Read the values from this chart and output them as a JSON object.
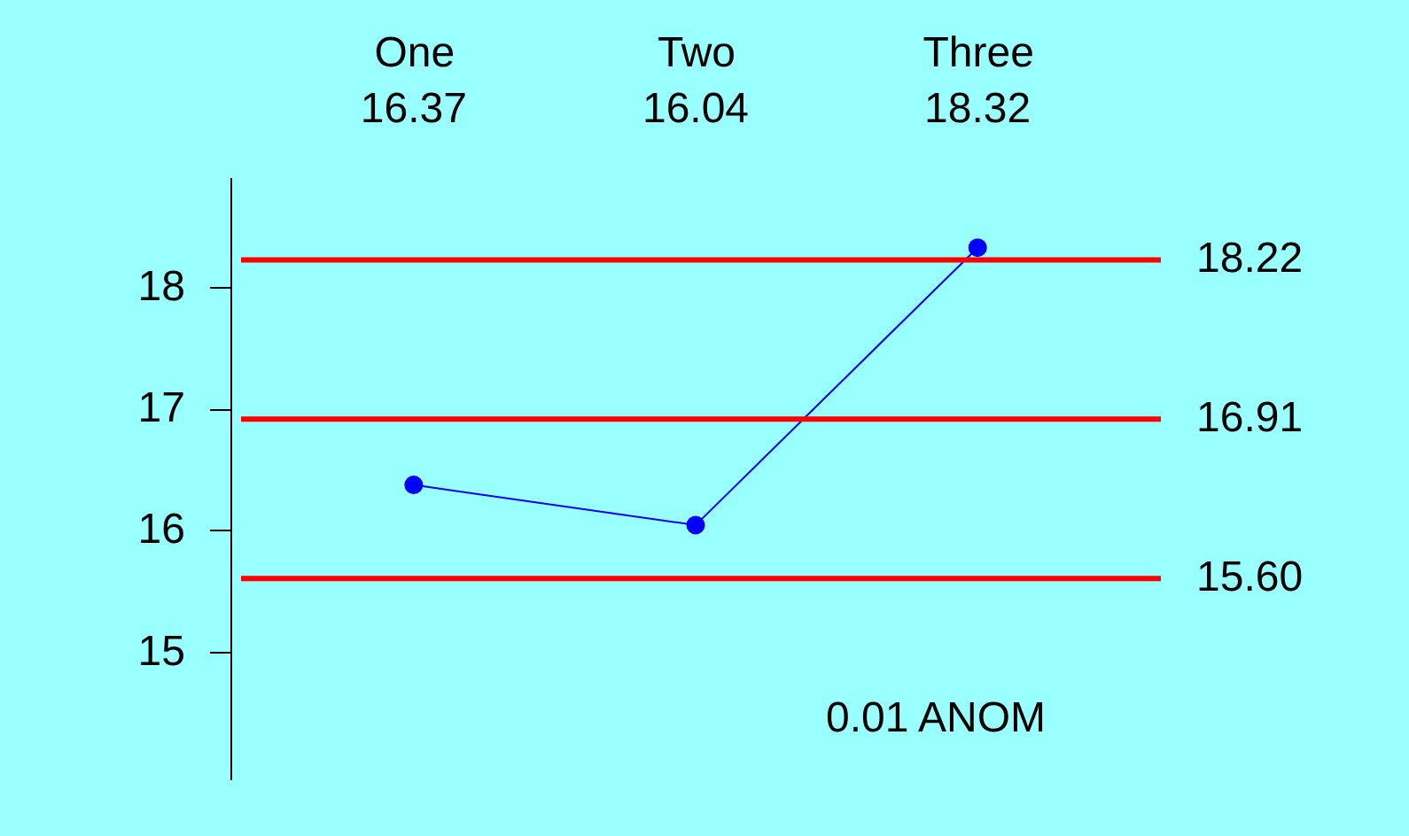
{
  "chart_data": {
    "type": "line",
    "categories": [
      "One",
      "Two",
      "Three"
    ],
    "series": [
      {
        "color": "#0000ff",
        "values": [
          16.37,
          16.04,
          18.32
        ]
      }
    ],
    "data_labels": true,
    "marker": "circle",
    "line_style": "solid",
    "grid": false,
    "ylim": [
      13.95,
      18.9
    ],
    "yticks": [
      15,
      16,
      17,
      18
    ],
    "ref_lines": [
      {
        "axis": "y",
        "value": 18.22,
        "label": "18.22",
        "color": "#ff0000"
      },
      {
        "axis": "y",
        "value": 16.91,
        "label": "16.91",
        "color": "#ff0000"
      },
      {
        "axis": "y",
        "value": 15.6,
        "label": "15.60",
        "color": "#ff0000"
      }
    ],
    "annotations": [
      "0.01  ANOM"
    ]
  }
}
